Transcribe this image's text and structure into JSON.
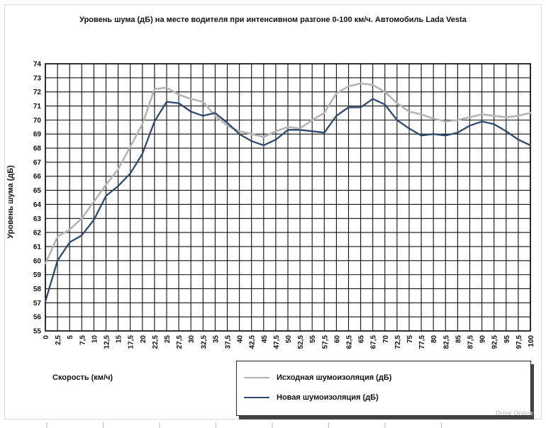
{
  "chart_data": {
    "type": "line",
    "title": "Уровень шума (дБ) на месте водителя при интенсивном разгоне 0-100 км/ч. Автомобиль Lada Vesta",
    "xlabel": "Скорость (км/ч)",
    "ylabel": "Уровень шума (дБ)",
    "ylim": [
      55,
      74
    ],
    "grid": true,
    "legend_position": "bottom-right",
    "categories": [
      "0",
      "2,5",
      "5",
      "7,5",
      "10",
      "12,5",
      "15",
      "17,5",
      "20",
      "22,5",
      "25",
      "27,5",
      "30",
      "32,5",
      "35",
      "37,5",
      "40",
      "42,5",
      "45",
      "47,5",
      "50",
      "52,5",
      "55",
      "57,5",
      "60",
      "62,5",
      "65",
      "67,5",
      "70",
      "72,5",
      "75",
      "77,5",
      "80",
      "82,5",
      "85",
      "87,5",
      "90",
      "92,5",
      "95",
      "97,5",
      "100"
    ],
    "y_ticks": [
      "55",
      "56",
      "57",
      "58",
      "59",
      "60",
      "61",
      "62",
      "63",
      "64",
      "65",
      "66",
      "67",
      "68",
      "69",
      "70",
      "71",
      "72",
      "73",
      "74"
    ],
    "series": [
      {
        "name": "Исходная шумоизоляция (дБ)",
        "color": "#b4b4b4",
        "values": [
          59.8,
          61.7,
          62.2,
          63.0,
          64.2,
          65.4,
          66.5,
          68.1,
          69.7,
          72.2,
          72.3,
          71.8,
          71.5,
          71.3,
          70.3,
          69.6,
          69.2,
          69.0,
          68.8,
          69.2,
          69.5,
          69.4,
          70.0,
          70.5,
          71.9,
          72.4,
          72.6,
          72.5,
          72.0,
          71.2,
          70.6,
          70.4,
          70.1,
          69.9,
          70.0,
          70.2,
          70.4,
          70.3,
          70.2,
          70.3,
          70.5
        ]
      },
      {
        "name": "Новая шумоизоляция (дБ)",
        "color": "#2f4a6e",
        "values": [
          57.1,
          60.0,
          61.3,
          61.8,
          62.9,
          64.6,
          65.3,
          66.2,
          67.6,
          69.9,
          71.3,
          71.2,
          70.6,
          70.3,
          70.5,
          69.8,
          69.0,
          68.5,
          68.2,
          68.6,
          69.3,
          69.3,
          69.2,
          69.1,
          70.3,
          70.9,
          70.9,
          71.5,
          71.1,
          70.0,
          69.4,
          68.9,
          69.0,
          68.9,
          69.1,
          69.6,
          69.9,
          69.7,
          69.2,
          68.6,
          68.2
        ]
      }
    ]
  },
  "watermark": "Drive Online"
}
